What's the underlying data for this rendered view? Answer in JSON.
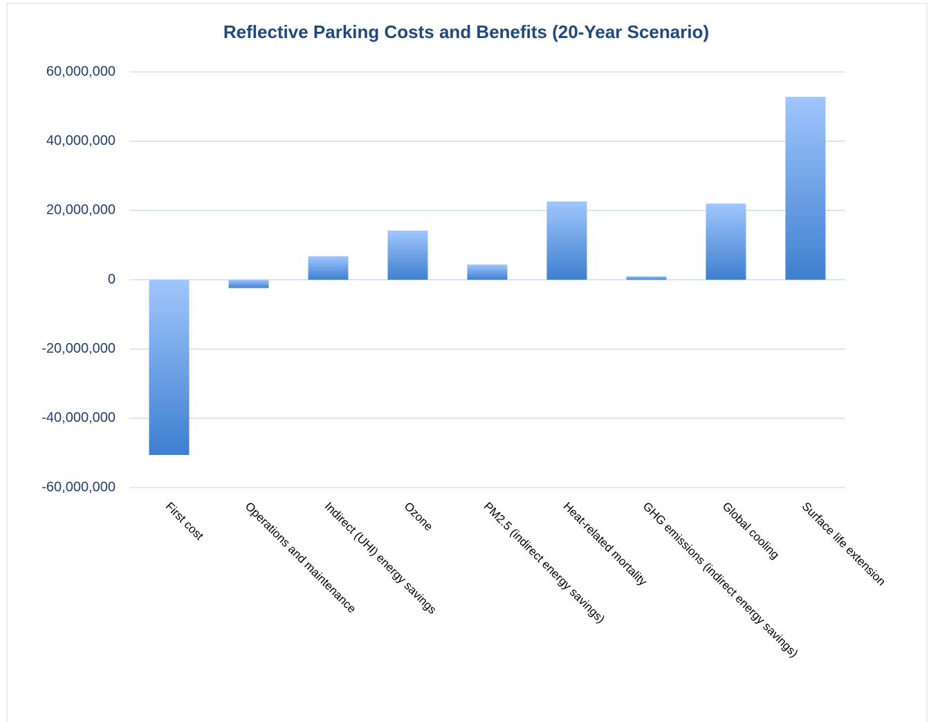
{
  "chart_data": {
    "type": "bar",
    "title": "Reflective Parking Costs and Benefits (20-Year Scenario)",
    "categories": [
      "First cost",
      "Operations and maintenance",
      "Indirect (UHI) energy savings",
      "Ozone",
      "PM2.5 (indirect energy savings)",
      "Heat-related mortality",
      "GHG emissions (indirect energy savings)",
      "Global cooling",
      "Surface life extension"
    ],
    "values": [
      -50600000,
      -2400000,
      6800000,
      14200000,
      4400000,
      22600000,
      1000000,
      22000000,
      52800000
    ],
    "gradient": [
      "#a0c6fc",
      "#3e7fd0"
    ],
    "ylim": [
      -60000000,
      60000000
    ],
    "yticks": [
      {
        "value": -60000000,
        "label": "-60,000,000"
      },
      {
        "value": -40000000,
        "label": "-40,000,000"
      },
      {
        "value": -20000000,
        "label": "-20,000,000"
      },
      0,
      {
        "value": 20000000,
        "label": "20,000,000"
      },
      {
        "value": 40000000,
        "label": "40,000,000"
      },
      {
        "value": 60000000,
        "label": "60,000,000"
      }
    ],
    "grid": true
  }
}
